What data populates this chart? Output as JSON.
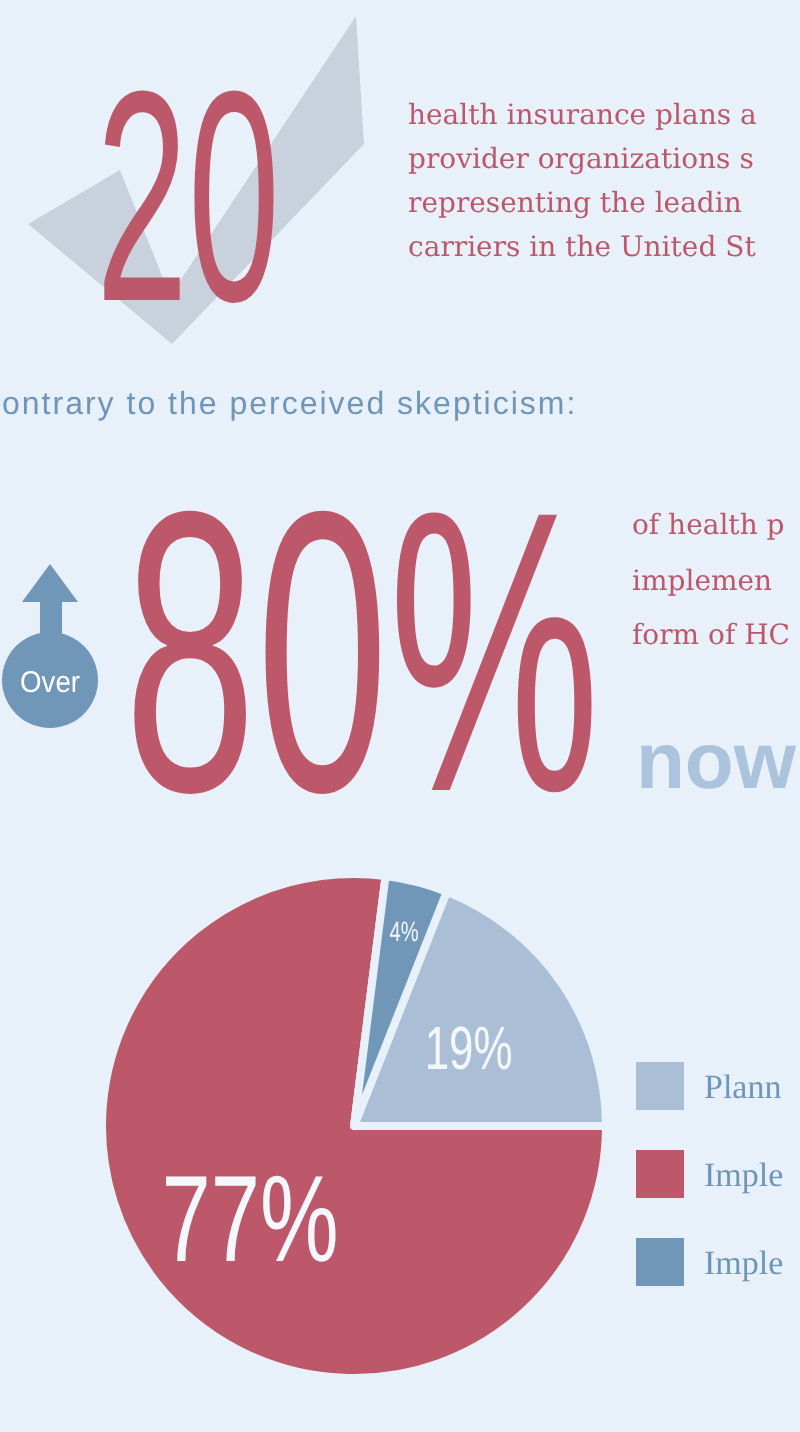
{
  "chart_data": {
    "type": "pie",
    "categories": [
      "Plann",
      "Imple",
      "Imple"
    ],
    "values": [
      19,
      77,
      4
    ],
    "colors": [
      "#aabfd5",
      "#bc5869",
      "#7097b8"
    ],
    "value_labels": [
      "19%",
      "77%",
      "4%"
    ],
    "legend": "right",
    "annotations": [
      "20",
      "health insurance plans a",
      "provider organizations s",
      "representing the leadin",
      "carriers in the United St",
      "ontrary to the perceived skepticism:",
      "Over",
      "80%",
      "of health p",
      "implemen",
      "form of HC",
      "now"
    ]
  }
}
